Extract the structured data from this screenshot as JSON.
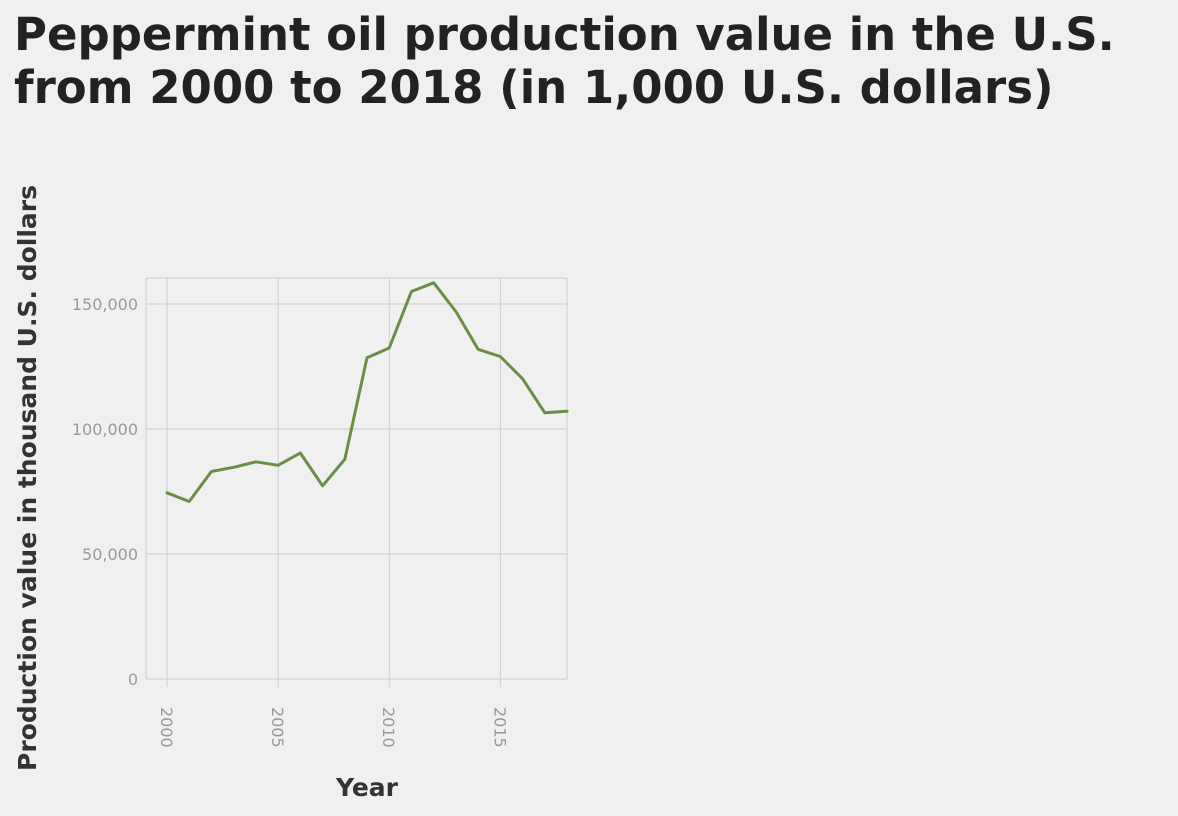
{
  "chart_data": {
    "type": "line",
    "title": "Peppermint oil production value in the U.S. from 2000 to 2018 (in 1,000 U.S. dollars)",
    "xlabel": "Year",
    "ylabel": "Production value in thousand U.S. dollars",
    "xlim": [
      2000,
      2018
    ],
    "ylim": [
      0,
      160000
    ],
    "x_ticks": [
      2000,
      2005,
      2010,
      2015
    ],
    "x_tick_labels": [
      "2000",
      "2005",
      "2010",
      "2015"
    ],
    "y_ticks": [
      0,
      50000,
      100000,
      150000
    ],
    "y_tick_labels": [
      "0",
      "50,000",
      "100,000",
      "150,000"
    ],
    "grid": true,
    "line_color": "#6b8e46",
    "series": [
      {
        "x": [
          2000,
          2001,
          2002,
          2003,
          2004,
          2005,
          2006,
          2007,
          2008,
          2009,
          2010,
          2011,
          2012,
          2013,
          2014,
          2015,
          2016,
          2017,
          2018
        ],
        "y": [
          74500,
          71000,
          83000,
          84700,
          86900,
          85500,
          90400,
          77300,
          87900,
          128500,
          132400,
          155000,
          158500,
          147000,
          131900,
          129000,
          120100,
          106500,
          107100
        ]
      }
    ]
  }
}
